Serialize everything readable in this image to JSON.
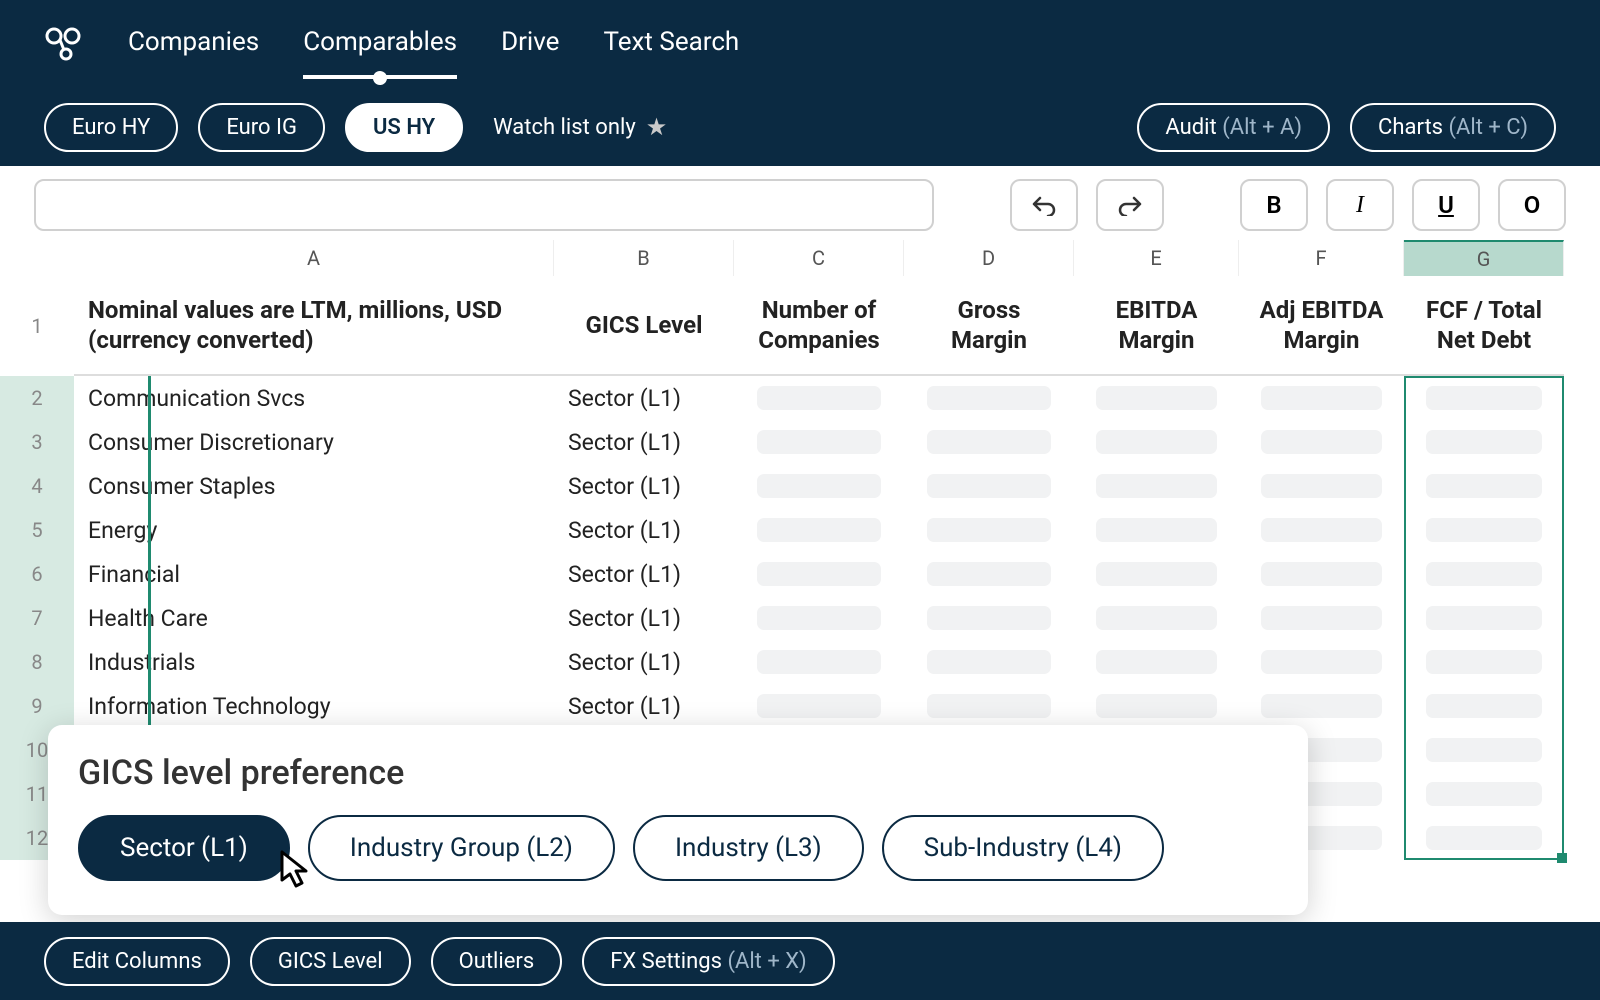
{
  "colors": {
    "navy": "#0b2a42",
    "white": "#ffffff",
    "selection_green": "#1f8a6f",
    "selection_fill": "#d7eae2",
    "colhead_fill": "#b7d9cd",
    "placeholder": "#f1f2f3",
    "border_gray": "#d0d0d0",
    "hint_text": "#9fb6c9"
  },
  "nav": {
    "items": [
      {
        "label": "Companies",
        "active": false
      },
      {
        "label": "Comparables",
        "active": true
      },
      {
        "label": "Drive",
        "active": false
      },
      {
        "label": "Text Search",
        "active": false
      }
    ]
  },
  "filters": {
    "pills": [
      {
        "label": "Euro HY",
        "filled": false
      },
      {
        "label": "Euro IG",
        "filled": false
      },
      {
        "label": "US HY",
        "filled": true
      }
    ],
    "watchlist_label": "Watch list only"
  },
  "right_actions": {
    "audit": {
      "label": "Audit",
      "hint": "(Alt + A)"
    },
    "charts": {
      "label": "Charts",
      "hint": "(Alt + C)"
    }
  },
  "toolbar": {
    "undo": "↶",
    "redo": "↷",
    "bold": "B",
    "italic": "I",
    "underline": "U",
    "other": "O"
  },
  "columns": [
    {
      "letter": "A",
      "header": "Nominal values are LTM, millions, USD (currency converted)",
      "selected": false
    },
    {
      "letter": "B",
      "header": "GICS Level",
      "selected": false
    },
    {
      "letter": "C",
      "header": "Number of Companies",
      "selected": false
    },
    {
      "letter": "D",
      "header": "Gross Margin",
      "selected": false
    },
    {
      "letter": "E",
      "header": "EBITDA Margin",
      "selected": false
    },
    {
      "letter": "F",
      "header": "Adj EBITDA Margin",
      "selected": false
    },
    {
      "letter": "G",
      "header": "FCF / Total Net Debt",
      "selected": true
    }
  ],
  "rows": [
    {
      "n": 2,
      "a": "Communication Svcs",
      "b": "Sector (L1)"
    },
    {
      "n": 3,
      "a": "Consumer Discretionary",
      "b": "Sector (L1)"
    },
    {
      "n": 4,
      "a": "Consumer Staples",
      "b": "Sector (L1)"
    },
    {
      "n": 5,
      "a": "Energy",
      "b": "Sector (L1)"
    },
    {
      "n": 6,
      "a": "Financial",
      "b": "Sector (L1)"
    },
    {
      "n": 7,
      "a": "Health Care",
      "b": "Sector (L1)"
    },
    {
      "n": 8,
      "a": "Industrials",
      "b": "Sector (L1)"
    },
    {
      "n": 9,
      "a": "Information Technology",
      "b": "Sector (L1)"
    },
    {
      "n": 10,
      "a": "",
      "b": ""
    },
    {
      "n": 11,
      "a": "",
      "b": ""
    },
    {
      "n": 12,
      "a": "",
      "b": ""
    }
  ],
  "popup": {
    "title": "GICS level preference",
    "options": [
      {
        "label": "Sector (L1)",
        "selected": true
      },
      {
        "label": "Industry Group (L2)",
        "selected": false
      },
      {
        "label": "Industry (L3)",
        "selected": false
      },
      {
        "label": "Sub-Industry (L4)",
        "selected": false
      }
    ]
  },
  "bottom": {
    "edit_columns": "Edit Columns",
    "gics_level": "GICS Level",
    "outliers": "Outliers",
    "fx_label": "FX Settings",
    "fx_hint": "(Alt + X)"
  },
  "layout": {
    "col_widths": {
      "A": 480,
      "B": 180,
      "C": 170,
      "D": 170,
      "E": 165,
      "F": 165,
      "G": 160
    },
    "header_row_height": 100,
    "body_row_height": 44,
    "selection_column": "G"
  }
}
